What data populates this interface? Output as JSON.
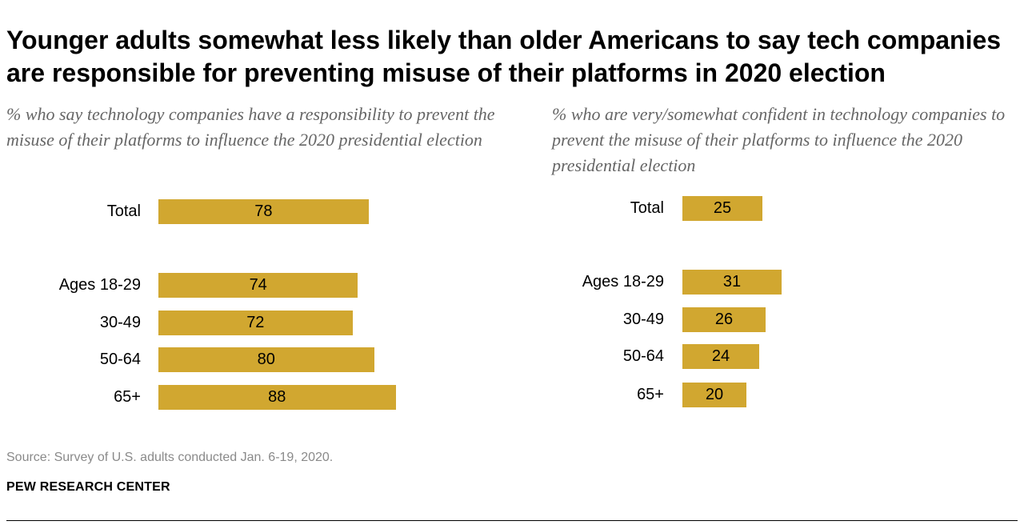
{
  "title": "Younger adults somewhat less likely than older Americans to say tech companies are responsible for preventing misuse of their platforms in 2020 election",
  "source": "Source: Survey of U.S. adults conducted Jan. 6-19, 2020.",
  "brand": "PEW RESEARCH CENTER",
  "bar_color": "#d1a730",
  "chart_data": [
    {
      "type": "bar",
      "orientation": "horizontal",
      "title": "% who say technology companies have a responsibility to prevent the misuse of their platforms to influence the 2020 presidential election",
      "categories": [
        "Total",
        "Ages 18-29",
        "30-49",
        "50-64",
        "65+"
      ],
      "values": [
        78,
        74,
        72,
        80,
        88
      ],
      "xlim": [
        0,
        100
      ]
    },
    {
      "type": "bar",
      "orientation": "horizontal",
      "title": "% who are very/somewhat confident in technology companies to prevent the misuse of their platforms to influence the 2020 presidential election",
      "categories": [
        "Total",
        "Ages 18-29",
        "30-49",
        "50-64",
        "65+"
      ],
      "values": [
        25,
        31,
        26,
        24,
        20
      ],
      "xlim": [
        0,
        100
      ]
    }
  ]
}
